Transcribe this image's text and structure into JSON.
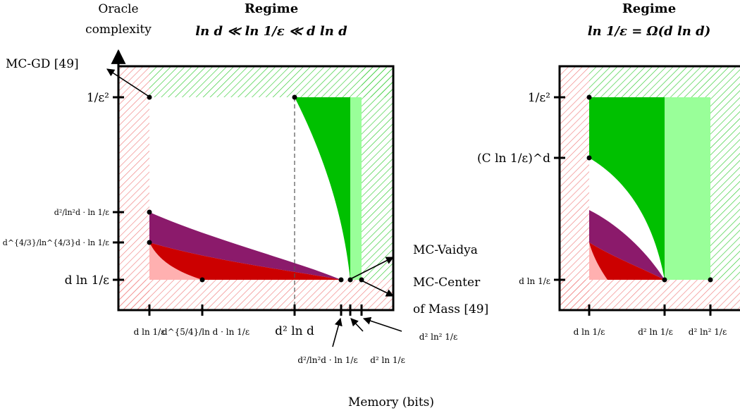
{
  "y_axis_title": [
    "Oracle",
    "complexity"
  ],
  "x_axis_title": "Memory (bits)",
  "panels": [
    {
      "title": [
        "Regime",
        "ln d ≪ ln 1/ε ≪ d ln d"
      ],
      "y_ticks": [
        "1/ε²",
        "d²/ln²d · ln 1/ε",
        "d^{4/3}/ln^{4/3}d · ln 1/ε",
        "d ln 1/ε"
      ],
      "x_ticks": [
        "d ln 1/ε",
        "d^{5/4}/ln d · ln 1/ε",
        "d² ln d",
        "d²/ln²d · ln 1/ε",
        "d² ln 1/ε",
        "d² ln² 1/ε"
      ]
    },
    {
      "title": [
        "Regime",
        "ln 1/ε = Ω(d ln d)"
      ],
      "y_ticks": [
        "1/ε²",
        "(C ln 1/ε)^d",
        "d ln 1/ε"
      ],
      "x_ticks": [
        "d ln 1/ε",
        "d² ln 1/ε",
        "d² ln² 1/ε"
      ]
    }
  ],
  "annotations": {
    "mc_gd": "MC-GD [49]",
    "mc_vaidya": "MC-Vaidya",
    "mc_center": [
      "MC-Center",
      "of Mass [49]"
    ]
  },
  "colors": {
    "lower_bound_hatch": "#f08080",
    "upper_bound_hatch": "#33cc33",
    "bright_green": "#00c000",
    "light_green": "#99ff99",
    "purple": "#8b1a6b",
    "red": "#cc0000",
    "pink": "#ffb0b0"
  }
}
